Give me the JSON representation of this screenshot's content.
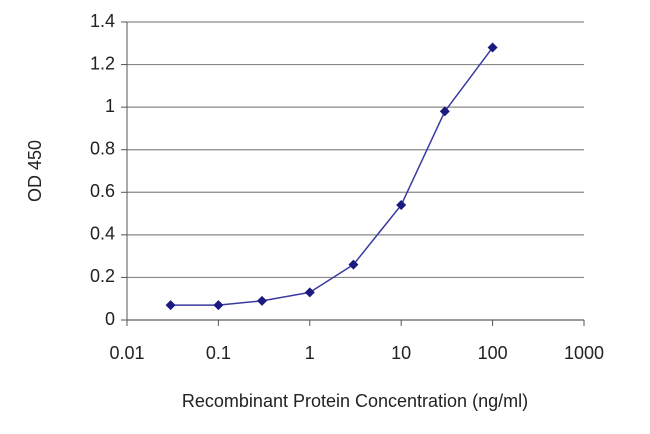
{
  "chart_data": {
    "type": "line",
    "x_label": "Recombinant Protein Concentration (ng/ml)",
    "y_label": "OD 450",
    "x": [
      0.03,
      0.1,
      0.3,
      1,
      3,
      10,
      30,
      100
    ],
    "series": [
      {
        "color": "#1a1a80",
        "values": [
          0.07,
          0.07,
          0.09,
          0.13,
          0.26,
          0.54,
          0.98,
          1.28
        ]
      }
    ],
    "xlim": [
      0.01,
      1000
    ],
    "xticks": [
      0.01,
      0.1,
      1,
      10,
      100,
      1000
    ],
    "xlog": true,
    "ylim": [
      0,
      1.4
    ],
    "yticks": [
      0,
      0.2,
      0.4,
      0.6,
      0.8,
      1,
      1.2,
      1.4
    ],
    "grid": true
  }
}
